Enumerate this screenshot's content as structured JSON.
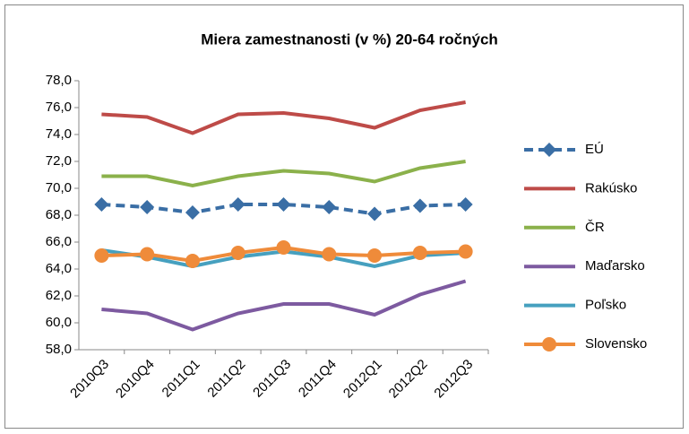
{
  "chart_data": {
    "type": "line",
    "title": "Miera zamestnanosti (v %) 20-64 ročných",
    "categories": [
      "2010Q3",
      "2010Q4",
      "2011Q1",
      "2011Q2",
      "2011Q3",
      "2011Q4",
      "2012Q1",
      "2012Q2",
      "2012Q3"
    ],
    "ylim": [
      58,
      78
    ],
    "yticks": [
      {
        "value": 58,
        "label": "58,0"
      },
      {
        "value": 60,
        "label": "60,0"
      },
      {
        "value": 62,
        "label": "62,0"
      },
      {
        "value": 64,
        "label": "64,0"
      },
      {
        "value": 66,
        "label": "66,0"
      },
      {
        "value": 68,
        "label": "68,0"
      },
      {
        "value": 70,
        "label": "70,0"
      },
      {
        "value": 72,
        "label": "72,0"
      },
      {
        "value": 74,
        "label": "74,0"
      },
      {
        "value": 76,
        "label": "76,0"
      },
      {
        "value": 78,
        "label": "78,0"
      }
    ],
    "grid": false,
    "legend": "right",
    "series": [
      {
        "name": "EÚ",
        "color": "#3a6ea5",
        "dash": true,
        "marker": "diamond",
        "values": [
          68.8,
          68.6,
          68.2,
          68.8,
          68.8,
          68.6,
          68.1,
          68.7,
          68.8
        ]
      },
      {
        "name": "Rakúsko",
        "color": "#be4b48",
        "values": [
          75.5,
          75.3,
          74.1,
          75.5,
          75.6,
          75.2,
          74.5,
          75.8,
          76.4
        ]
      },
      {
        "name": "ČR",
        "color": "#8bb14b",
        "values": [
          70.9,
          70.9,
          70.2,
          70.9,
          71.3,
          71.1,
          70.5,
          71.5,
          72.0
        ]
      },
      {
        "name": "Maďarsko",
        "color": "#7d5aa0",
        "values": [
          61.0,
          60.7,
          59.5,
          60.7,
          61.4,
          61.4,
          60.6,
          62.1,
          63.1
        ]
      },
      {
        "name": "Poľsko",
        "color": "#46a0bf",
        "values": [
          65.4,
          64.9,
          64.2,
          64.9,
          65.3,
          64.9,
          64.2,
          65.0,
          65.2
        ]
      },
      {
        "name": "Slovensko",
        "color": "#ef8b3a",
        "marker": "circle",
        "values": [
          65.0,
          65.1,
          64.6,
          65.2,
          65.6,
          65.1,
          65.0,
          65.2,
          65.3
        ]
      }
    ]
  }
}
